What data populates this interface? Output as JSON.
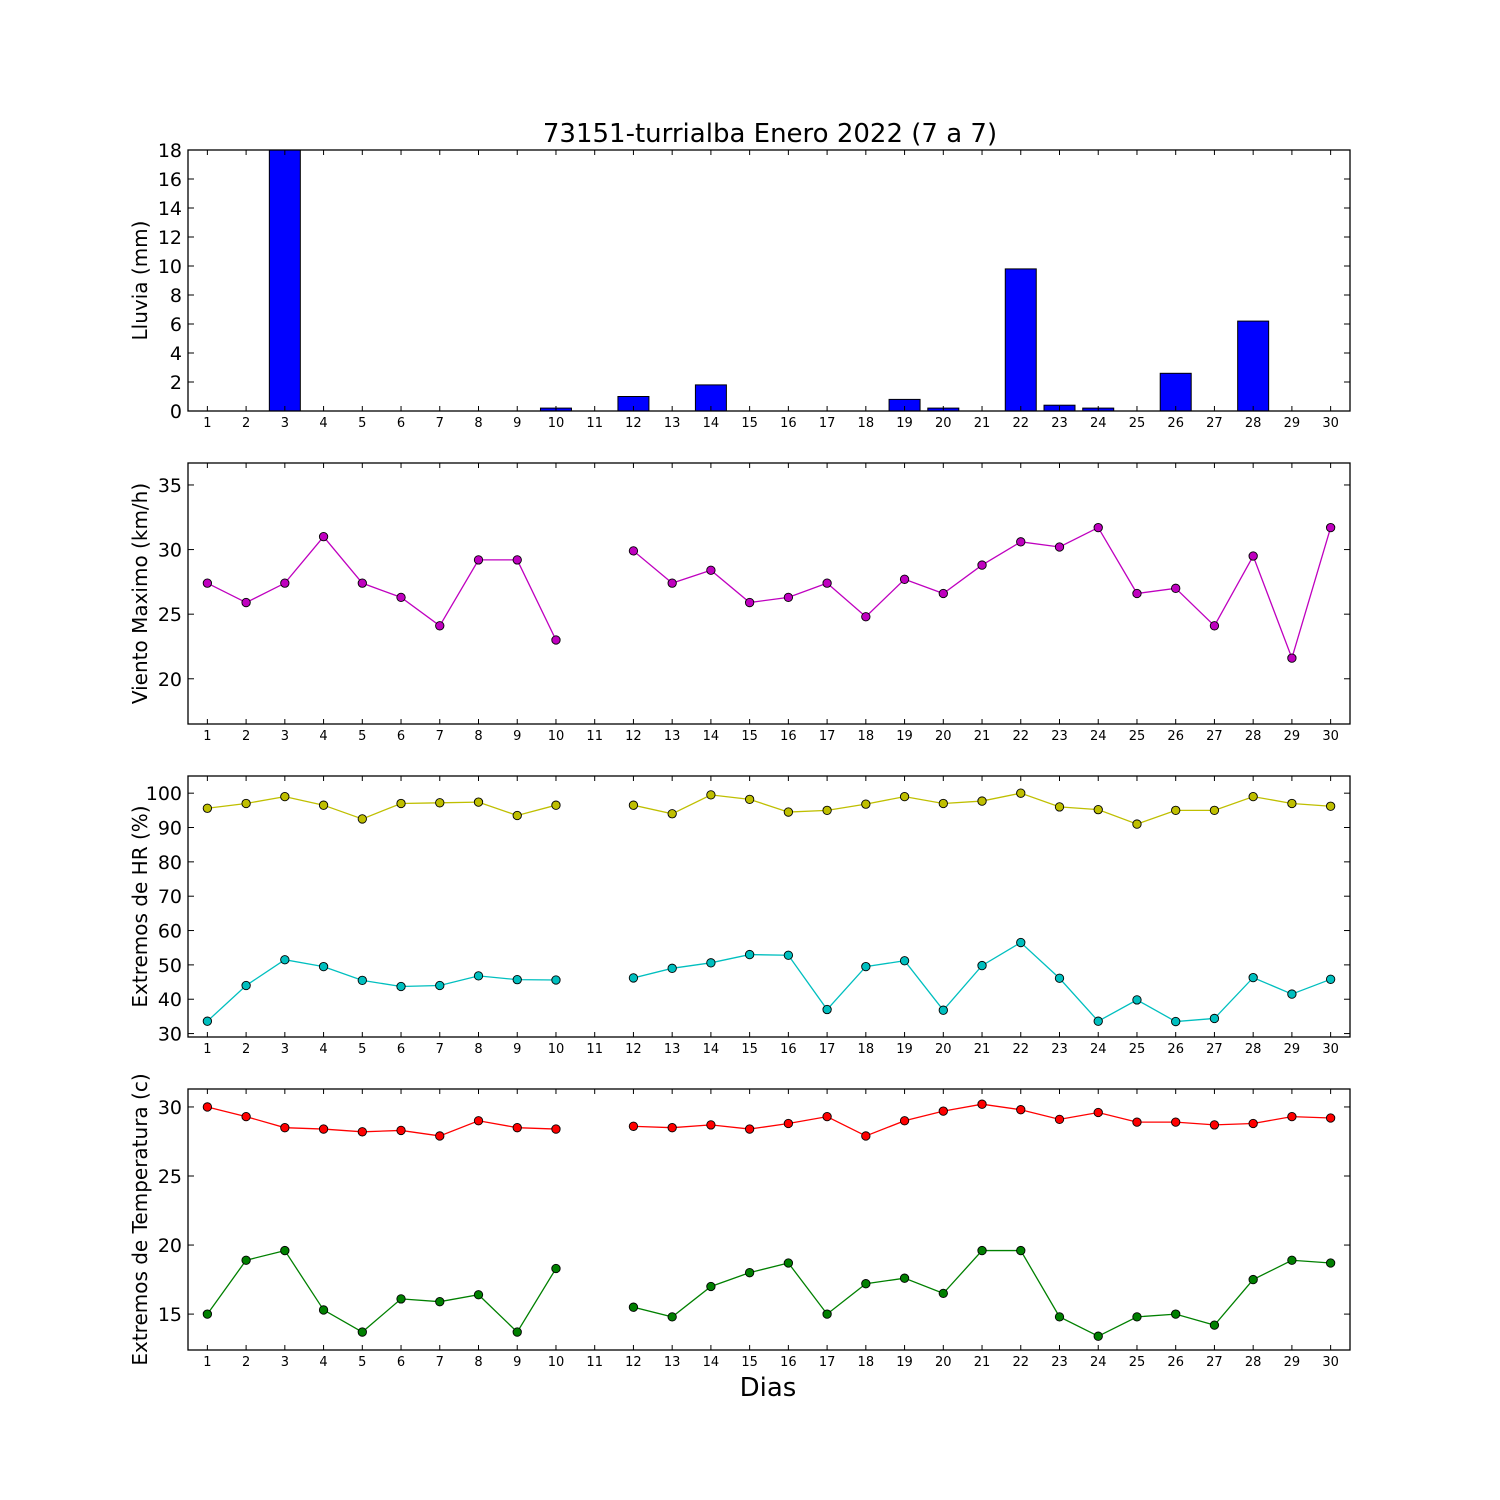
{
  "title": "73151-turrialba Enero 2022  (7 a 7)",
  "xlabel": "Dias",
  "chart_data": [
    {
      "type": "bar",
      "ylabel": "Lluvia (mm)",
      "ylim": [
        0,
        18
      ],
      "yticks": [
        0,
        2,
        4,
        6,
        8,
        10,
        12,
        14,
        16,
        18
      ],
      "categories": [
        1,
        2,
        3,
        4,
        5,
        6,
        7,
        8,
        9,
        10,
        11,
        12,
        13,
        14,
        15,
        16,
        17,
        18,
        19,
        20,
        21,
        22,
        23,
        24,
        25,
        26,
        27,
        28,
        29,
        30
      ],
      "values": [
        0,
        0,
        18,
        0,
        0,
        0,
        0,
        0,
        0,
        0.2,
        null,
        1.0,
        0,
        1.8,
        0,
        0,
        0,
        0,
        0.8,
        0.2,
        0,
        9.8,
        0.4,
        0.2,
        0,
        2.6,
        0,
        6.2,
        0,
        0
      ],
      "color": "#0000ff"
    },
    {
      "type": "line",
      "ylabel": "Viento Maximo (km/h)",
      "ylim": [
        16.5,
        36.7
      ],
      "yticks": [
        20,
        25,
        30,
        35
      ],
      "x": [
        1,
        2,
        3,
        4,
        5,
        6,
        7,
        8,
        9,
        10,
        11,
        12,
        13,
        14,
        15,
        16,
        17,
        18,
        19,
        20,
        21,
        22,
        23,
        24,
        25,
        26,
        27,
        28,
        29,
        30
      ],
      "series": [
        {
          "values": [
            27.4,
            25.9,
            27.4,
            31.0,
            27.4,
            26.3,
            24.1,
            29.2,
            29.2,
            23.0,
            null,
            29.9,
            27.4,
            28.4,
            25.9,
            26.3,
            27.4,
            24.8,
            27.7,
            26.6,
            28.8,
            30.6,
            30.2,
            31.7,
            26.6,
            27.0,
            24.1,
            29.5,
            21.6,
            31.7
          ],
          "color": "#bf00bf"
        }
      ]
    },
    {
      "type": "line",
      "ylabel": "Extremos de HR (%)",
      "ylim": [
        29,
        105
      ],
      "yticks": [
        30,
        40,
        50,
        60,
        70,
        80,
        90,
        100
      ],
      "x": [
        1,
        2,
        3,
        4,
        5,
        6,
        7,
        8,
        9,
        10,
        11,
        12,
        13,
        14,
        15,
        16,
        17,
        18,
        19,
        20,
        21,
        22,
        23,
        24,
        25,
        26,
        27,
        28,
        29,
        30
      ],
      "series": [
        {
          "values": [
            95.6,
            97.0,
            99.0,
            96.5,
            92.5,
            97.0,
            97.2,
            97.4,
            93.5,
            96.5,
            null,
            96.5,
            94.0,
            99.5,
            98.2,
            94.5,
            95.0,
            96.8,
            99.0,
            97.0,
            97.7,
            100.0,
            96.0,
            95.2,
            91.0,
            95.0,
            95.0,
            99.0,
            97.0,
            96.2
          ],
          "color": "#bfbf00"
        },
        {
          "values": [
            33.6,
            44.0,
            51.5,
            49.5,
            45.5,
            43.7,
            44.0,
            46.8,
            45.7,
            45.6,
            null,
            46.2,
            49.0,
            50.6,
            53.0,
            52.8,
            37.0,
            49.5,
            51.2,
            36.8,
            49.8,
            56.5,
            46.1,
            33.6,
            39.8,
            33.5,
            34.4,
            46.3,
            41.5,
            45.8
          ],
          "color": "#00bfbf"
        }
      ]
    },
    {
      "type": "line",
      "ylabel": "Extremos de Temperatura (c)",
      "ylim": [
        12.4,
        31.3
      ],
      "yticks": [
        15,
        20,
        25,
        30
      ],
      "x": [
        1,
        2,
        3,
        4,
        5,
        6,
        7,
        8,
        9,
        10,
        11,
        12,
        13,
        14,
        15,
        16,
        17,
        18,
        19,
        20,
        21,
        22,
        23,
        24,
        25,
        26,
        27,
        28,
        29,
        30
      ],
      "series": [
        {
          "values": [
            30.0,
            29.3,
            28.5,
            28.4,
            28.2,
            28.3,
            27.9,
            29.0,
            28.5,
            28.4,
            null,
            28.6,
            28.5,
            28.7,
            28.4,
            28.8,
            29.3,
            27.9,
            29.0,
            29.7,
            30.2,
            29.8,
            29.1,
            29.6,
            28.9,
            28.9,
            28.7,
            28.8,
            29.3,
            29.2
          ],
          "color": "#ff0000"
        },
        {
          "values": [
            15.0,
            18.9,
            19.6,
            15.3,
            13.7,
            16.1,
            15.9,
            16.4,
            13.7,
            18.3,
            null,
            15.5,
            14.8,
            17.0,
            18.0,
            18.7,
            15.0,
            17.2,
            17.6,
            16.5,
            19.6,
            19.6,
            14.8,
            13.4,
            14.8,
            15.0,
            14.2,
            17.5,
            18.9,
            18.7
          ],
          "color": "#008000"
        }
      ]
    }
  ]
}
